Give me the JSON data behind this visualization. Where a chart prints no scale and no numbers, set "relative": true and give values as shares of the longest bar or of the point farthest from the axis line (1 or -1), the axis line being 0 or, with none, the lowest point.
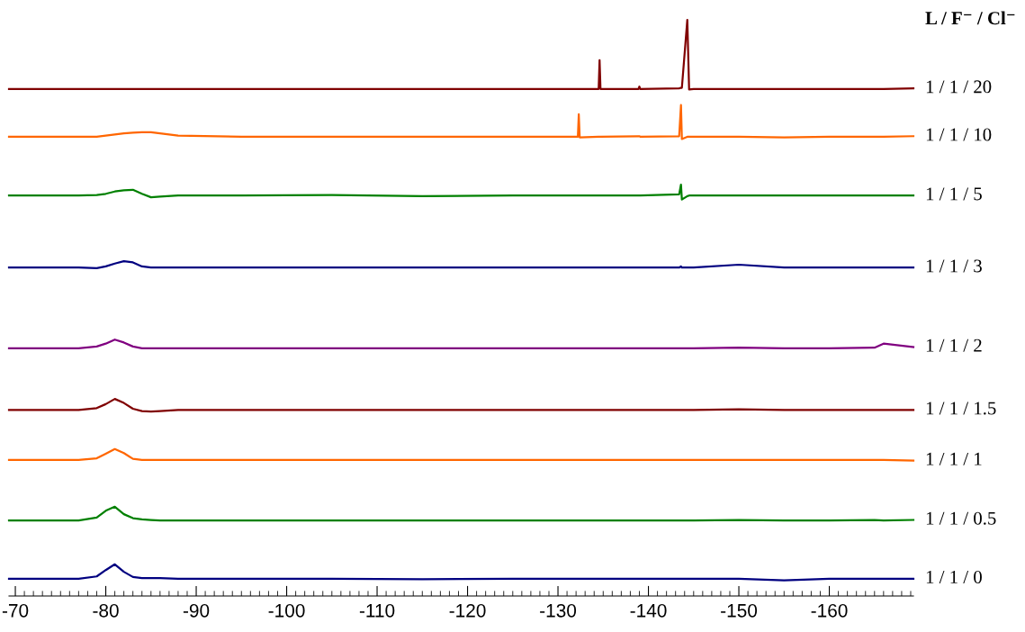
{
  "chart_data": {
    "type": "line",
    "relative": true,
    "legend_title": "L / F⁻ / Cl⁻",
    "xlim": [
      -69.3,
      -169.3
    ],
    "xticks": [
      -70,
      -80,
      -90,
      -100,
      -110,
      -120,
      -130,
      -140,
      -150,
      -160
    ],
    "tick_labels": "x",
    "grid": false,
    "marker": "none",
    "line_style": "solid",
    "x": [
      -69.3,
      -74,
      -77,
      -79,
      -80,
      -81,
      -82,
      -83,
      -84,
      -85,
      -86,
      -88,
      -95,
      -105,
      -115,
      -125,
      -132.2,
      -132.3,
      -132.4,
      -134.5,
      -134.6,
      -134.7,
      -138.9,
      -139.0,
      -139.1,
      -143.4,
      -143.6,
      -143.7,
      -144.3,
      -144.5,
      -145,
      -150,
      -155,
      -160,
      -165,
      -166,
      -169.3
    ],
    "series": [
      {
        "name": "1 / 1 / 20",
        "color": "#800000",
        "values": [
          0.88,
          0.88,
          0.88,
          0.88,
          0.88,
          0.88,
          0.88,
          0.88,
          0.88,
          0.88,
          0.88,
          0.88,
          0.88,
          0.88,
          0.88,
          0.88,
          0.88,
          0.88,
          0.88,
          0.88,
          0.93,
          0.88,
          0.88,
          0.884,
          0.88,
          0.881,
          0.882,
          0.882,
          1.0,
          0.879,
          0.88,
          0.88,
          0.88,
          0.88,
          0.88,
          0.88,
          0.881
        ]
      },
      {
        "name": "1 / 1 / 10",
        "color": "#ff6600",
        "values": [
          0.797,
          0.797,
          0.797,
          0.797,
          0.799,
          0.801,
          0.803,
          0.804,
          0.805,
          0.805,
          0.803,
          0.799,
          0.797,
          0.797,
          0.797,
          0.797,
          0.797,
          0.836,
          0.796,
          0.797,
          0.797,
          0.797,
          0.798,
          0.798,
          0.797,
          0.798,
          0.852,
          0.793,
          0.797,
          0.797,
          0.797,
          0.797,
          0.796,
          0.797,
          0.797,
          0.797,
          0.798
        ]
      },
      {
        "name": "1 / 1 / 5",
        "color": "#008000",
        "values": [
          0.695,
          0.695,
          0.695,
          0.696,
          0.698,
          0.702,
          0.704,
          0.705,
          0.698,
          0.692,
          0.693,
          0.695,
          0.695,
          0.696,
          0.694,
          0.695,
          0.695,
          0.695,
          0.695,
          0.695,
          0.695,
          0.695,
          0.695,
          0.695,
          0.695,
          0.697,
          0.714,
          0.688,
          0.694,
          0.695,
          0.695,
          0.695,
          0.695,
          0.695,
          0.695,
          0.695,
          0.695
        ]
      },
      {
        "name": "1 / 1 / 3",
        "color": "#000080",
        "values": [
          0.57,
          0.57,
          0.57,
          0.569,
          0.572,
          0.577,
          0.581,
          0.579,
          0.572,
          0.57,
          0.57,
          0.57,
          0.57,
          0.57,
          0.57,
          0.57,
          0.57,
          0.57,
          0.57,
          0.57,
          0.57,
          0.57,
          0.57,
          0.57,
          0.57,
          0.57,
          0.572,
          0.57,
          0.57,
          0.57,
          0.57,
          0.575,
          0.57,
          0.57,
          0.57,
          0.57,
          0.57
        ]
      },
      {
        "name": "1 / 1 / 2",
        "color": "#800080",
        "values": [
          0.43,
          0.43,
          0.43,
          0.433,
          0.438,
          0.445,
          0.44,
          0.433,
          0.43,
          0.43,
          0.43,
          0.43,
          0.43,
          0.43,
          0.43,
          0.43,
          0.43,
          0.43,
          0.43,
          0.43,
          0.43,
          0.43,
          0.43,
          0.43,
          0.43,
          0.43,
          0.43,
          0.43,
          0.43,
          0.43,
          0.43,
          0.431,
          0.43,
          0.43,
          0.431,
          0.438,
          0.432
        ]
      },
      {
        "name": "1 / 1 / 1.5",
        "color": "#800000",
        "values": [
          0.323,
          0.323,
          0.323,
          0.326,
          0.333,
          0.342,
          0.335,
          0.325,
          0.321,
          0.32,
          0.321,
          0.323,
          0.323,
          0.323,
          0.323,
          0.323,
          0.323,
          0.323,
          0.323,
          0.323,
          0.323,
          0.323,
          0.323,
          0.323,
          0.323,
          0.323,
          0.323,
          0.323,
          0.323,
          0.323,
          0.323,
          0.324,
          0.323,
          0.323,
          0.323,
          0.323,
          0.323
        ]
      },
      {
        "name": "1 / 1 / 1",
        "color": "#ff6600",
        "values": [
          0.236,
          0.236,
          0.236,
          0.239,
          0.247,
          0.255,
          0.248,
          0.238,
          0.236,
          0.236,
          0.236,
          0.236,
          0.236,
          0.236,
          0.236,
          0.236,
          0.236,
          0.236,
          0.236,
          0.236,
          0.236,
          0.236,
          0.236,
          0.236,
          0.236,
          0.236,
          0.236,
          0.236,
          0.236,
          0.236,
          0.236,
          0.236,
          0.236,
          0.236,
          0.236,
          0.236,
          0.235
        ]
      },
      {
        "name": "1 / 1 / 0.5",
        "color": "#008000",
        "values": [
          0.131,
          0.131,
          0.131,
          0.136,
          0.148,
          0.155,
          0.142,
          0.135,
          0.133,
          0.132,
          0.131,
          0.131,
          0.131,
          0.131,
          0.131,
          0.131,
          0.131,
          0.131,
          0.131,
          0.131,
          0.131,
          0.131,
          0.131,
          0.131,
          0.131,
          0.131,
          0.131,
          0.131,
          0.131,
          0.131,
          0.131,
          0.132,
          0.131,
          0.131,
          0.132,
          0.131,
          0.132
        ]
      },
      {
        "name": "1 / 1 / 0",
        "color": "#000080",
        "values": [
          0.03,
          0.03,
          0.03,
          0.034,
          0.045,
          0.055,
          0.042,
          0.033,
          0.031,
          0.031,
          0.031,
          0.03,
          0.03,
          0.03,
          0.029,
          0.03,
          0.03,
          0.03,
          0.03,
          0.03,
          0.03,
          0.03,
          0.03,
          0.03,
          0.03,
          0.03,
          0.03,
          0.03,
          0.03,
          0.03,
          0.03,
          0.03,
          0.027,
          0.03,
          0.03,
          0.03,
          0.03
        ]
      }
    ]
  }
}
